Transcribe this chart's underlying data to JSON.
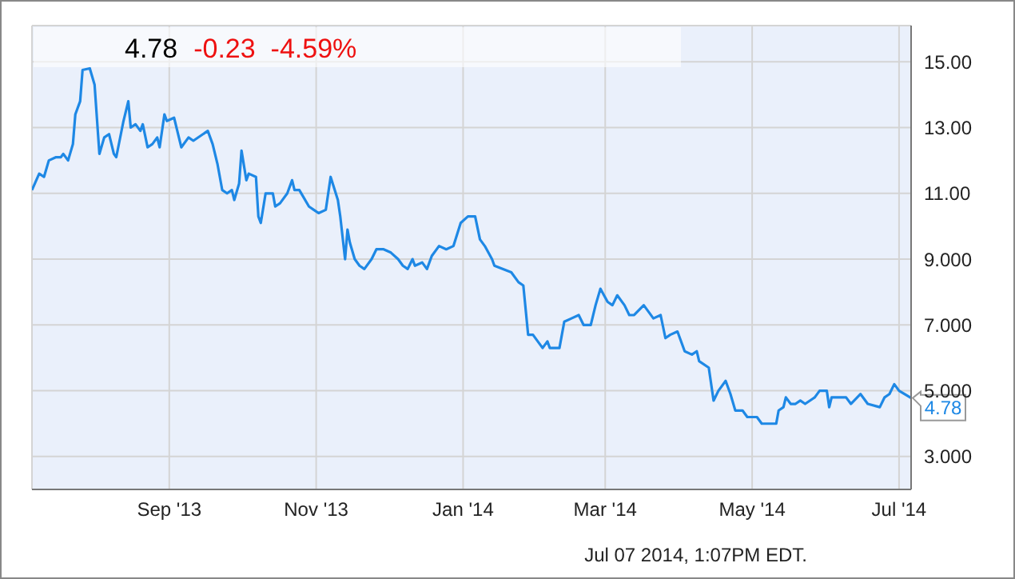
{
  "chart_data": {
    "type": "line",
    "title": "4.78",
    "subtitle": "-0.23  -4.59%",
    "annotations": [
      "Jul 07 2014, 1:07PM EDT.",
      {
        "text": "4.78",
        "x": "2014-07-06",
        "y": 4.78
      }
    ],
    "x": [
      "2013-07-06",
      "2013-07-09",
      "2013-07-11",
      "2013-07-13",
      "2013-07-16",
      "2013-07-18",
      "2013-07-19",
      "2013-07-21",
      "2013-07-23",
      "2013-07-24",
      "2013-07-26",
      "2013-07-27",
      "2013-07-30",
      "2013-08-01",
      "2013-08-03",
      "2013-08-05",
      "2013-08-07",
      "2013-08-09",
      "2013-08-10",
      "2013-08-13",
      "2013-08-15",
      "2013-08-16",
      "2013-08-18",
      "2013-08-20",
      "2013-08-21",
      "2013-08-23",
      "2013-08-25",
      "2013-08-27",
      "2013-08-28",
      "2013-08-30",
      "2013-08-31",
      "2013-09-03",
      "2013-09-06",
      "2013-09-09",
      "2013-09-11",
      "2013-09-17",
      "2013-09-19",
      "2013-09-21",
      "2013-09-23",
      "2013-09-25",
      "2013-09-27",
      "2013-09-28",
      "2013-09-30",
      "2013-10-01",
      "2013-10-03",
      "2013-10-04",
      "2013-10-07",
      "2013-10-08",
      "2013-10-09",
      "2013-10-11",
      "2013-10-14",
      "2013-10-15",
      "2013-10-17",
      "2013-10-20",
      "2013-10-22",
      "2013-10-23",
      "2013-10-25",
      "2013-10-29",
      "2013-10-31",
      "2013-11-02",
      "2013-11-05",
      "2013-11-07",
      "2013-11-10",
      "2013-11-11",
      "2013-11-13",
      "2013-11-14",
      "2013-11-15",
      "2013-11-17",
      "2013-11-19",
      "2013-11-21",
      "2013-11-24",
      "2013-11-26",
      "2013-11-29",
      "2013-12-02",
      "2013-12-05",
      "2013-12-07",
      "2013-12-09",
      "2013-12-11",
      "2013-12-12",
      "2013-12-15",
      "2013-12-17",
      "2013-12-19",
      "2013-12-22",
      "2013-12-25",
      "2013-12-28",
      "2013-12-31",
      "2014-01-03",
      "2014-01-06",
      "2014-01-08",
      "2014-01-10",
      "2014-01-13",
      "2014-01-14",
      "2014-01-21",
      "2014-01-24",
      "2014-01-26",
      "2014-01-28",
      "2014-01-30",
      "2014-02-01",
      "2014-02-03",
      "2014-02-05",
      "2014-02-06",
      "2014-02-10",
      "2014-02-12",
      "2014-02-15",
      "2014-02-18",
      "2014-02-20",
      "2014-02-23",
      "2014-02-25",
      "2014-02-27",
      "2014-03-02",
      "2014-03-04",
      "2014-03-06",
      "2014-03-09",
      "2014-03-11",
      "2014-03-13",
      "2014-03-17",
      "2014-03-21",
      "2014-03-24",
      "2014-03-26",
      "2014-03-28",
      "2014-03-31",
      "2014-04-03",
      "2014-04-06",
      "2014-04-08",
      "2014-04-09",
      "2014-04-13",
      "2014-04-15",
      "2014-04-17",
      "2014-04-20",
      "2014-04-22",
      "2014-04-24",
      "2014-04-27",
      "2014-04-29",
      "2014-05-03",
      "2014-05-05",
      "2014-05-11",
      "2014-05-12",
      "2014-05-14",
      "2014-05-15",
      "2014-05-17",
      "2014-05-19",
      "2014-05-21",
      "2014-05-23",
      "2014-05-27",
      "2014-05-29",
      "2014-06-01",
      "2014-06-02",
      "2014-06-03",
      "2014-06-09",
      "2014-06-11",
      "2014-06-15",
      "2014-06-18",
      "2014-06-23",
      "2014-06-25",
      "2014-06-27",
      "2014-06-29",
      "2014-07-01",
      "2014-07-06"
    ],
    "series": [
      {
        "color": "#1e88e5",
        "values": [
          11.1,
          11.6,
          11.5,
          12.0,
          12.1,
          12.1,
          12.2,
          12.0,
          12.5,
          13.4,
          13.8,
          14.75,
          14.8,
          14.3,
          12.2,
          12.7,
          12.8,
          12.2,
          12.1,
          13.2,
          13.8,
          13.0,
          13.1,
          12.9,
          13.1,
          12.4,
          12.5,
          12.7,
          12.4,
          13.4,
          13.2,
          13.3,
          12.4,
          12.7,
          12.6,
          12.9,
          12.5,
          11.9,
          11.1,
          11.0,
          11.1,
          10.8,
          11.3,
          12.3,
          11.4,
          11.6,
          11.5,
          10.3,
          10.1,
          11.0,
          11.0,
          10.6,
          10.7,
          11.0,
          11.4,
          11.1,
          11.1,
          10.6,
          10.5,
          10.4,
          10.5,
          11.5,
          10.8,
          10.3,
          9.0,
          9.9,
          9.5,
          9.0,
          8.8,
          8.7,
          9.0,
          9.3,
          9.3,
          9.2,
          9.0,
          8.8,
          8.7,
          9.0,
          8.8,
          8.9,
          8.7,
          9.1,
          9.4,
          9.3,
          9.4,
          10.1,
          10.3,
          10.3,
          9.6,
          9.4,
          9.0,
          8.8,
          8.6,
          8.3,
          8.2,
          6.7,
          6.7,
          6.5,
          6.3,
          6.5,
          6.3,
          6.3,
          7.1,
          7.2,
          7.3,
          7.0,
          7.0,
          7.6,
          8.1,
          7.7,
          7.6,
          7.9,
          7.6,
          7.3,
          7.3,
          7.6,
          7.2,
          7.3,
          6.6,
          6.7,
          6.8,
          6.2,
          6.1,
          6.2,
          5.9,
          5.7,
          4.7,
          5.0,
          5.3,
          4.9,
          4.4,
          4.4,
          4.2,
          4.2,
          4.0,
          4.0,
          4.4,
          4.5,
          4.8,
          4.6,
          4.6,
          4.7,
          4.6,
          4.8,
          5.0,
          5.0,
          4.5,
          4.8,
          4.8,
          4.6,
          4.9,
          4.6,
          4.5,
          4.8,
          4.9,
          5.2,
          5.0,
          4.78
        ]
      }
    ],
    "xlim": [
      "2013-07-06",
      "2014-07-06"
    ],
    "xticks": [
      {
        "value": "2013-09-01",
        "label": "Sep '13"
      },
      {
        "value": "2013-11-01",
        "label": "Nov '13"
      },
      {
        "value": "2014-01-01",
        "label": "Jan '14"
      },
      {
        "value": "2014-03-01",
        "label": "Mar '14"
      },
      {
        "value": "2014-05-01",
        "label": "May '14"
      },
      {
        "value": "2014-07-01",
        "label": "Jul '14"
      }
    ],
    "ylim": [
      2,
      16.1
    ],
    "yticks": [
      {
        "value": 3,
        "label": "3.000"
      },
      {
        "value": 5,
        "label": "5.000"
      },
      {
        "value": 7,
        "label": "7.000"
      },
      {
        "value": 9,
        "label": "9.000"
      },
      {
        "value": 11,
        "label": "11.00"
      },
      {
        "value": 13,
        "label": "13.00"
      },
      {
        "value": 15,
        "label": "15.00"
      }
    ],
    "grid": true,
    "marker": "none",
    "line_style": "solid"
  }
}
